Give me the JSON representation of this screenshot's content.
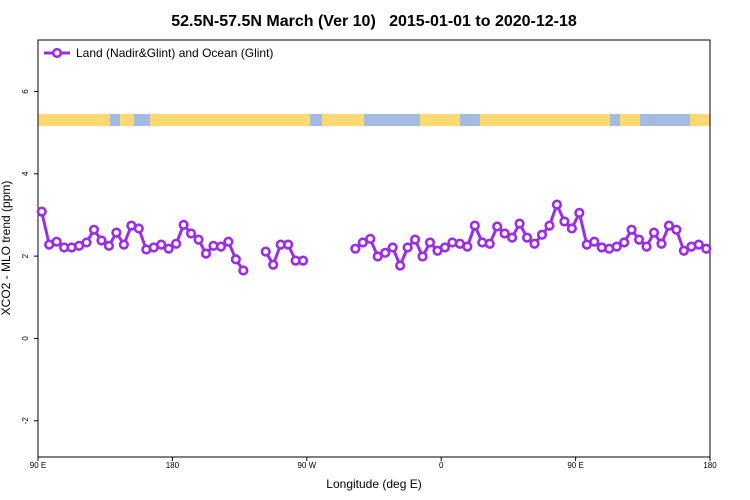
{
  "chart_data": {
    "type": "line",
    "title": "52.5N-57.5N March (Ver 10)   2015-01-01 to 2020-12-18",
    "x_label": "Longitude (deg E)",
    "y_label": "XCO2 - MLO trend (ppm)",
    "xlim": [
      90,
      540
    ],
    "ylim": [
      -2.88,
      7.25
    ],
    "xticks": [
      {
        "value": 90,
        "label": "90 E"
      },
      180,
      {
        "value": 270,
        "label": "90 W"
      },
      {
        "value": 360,
        "label": "0"
      },
      {
        "value": 450,
        "label": "90 E"
      },
      {
        "value": 540,
        "label": "180"
      }
    ],
    "yticks": [
      -2,
      0,
      2,
      4,
      6
    ],
    "legend": "top-left",
    "x": [
      92.5,
      97.5,
      102.5,
      107.5,
      112.5,
      117.5,
      122.5,
      127.5,
      132.5,
      137.5,
      142.5,
      147.5,
      152.5,
      157.5,
      162.5,
      167.5,
      172.5,
      177.5,
      182.5,
      187.5,
      192.5,
      197.5,
      202.5,
      207.5,
      212.5,
      217.5,
      222.5,
      227.5,
      232.5,
      237.5,
      242.5,
      247.5,
      252.5,
      257.5,
      262.5,
      267.5,
      272.5,
      277.5,
      282.5,
      287.5,
      292.5,
      297.5,
      302.5,
      307.5,
      312.5,
      317.5,
      322.5,
      327.5,
      332.5,
      337.5,
      342.5,
      347.5,
      352.5,
      357.5,
      362.5,
      367.5,
      372.5,
      377.5,
      382.5,
      387.5,
      392.5,
      397.5,
      402.5,
      407.5,
      412.5,
      417.5,
      422.5,
      427.5,
      432.5,
      437.5,
      442.5,
      447.5,
      452.5,
      457.5,
      462.5,
      467.5,
      472.5,
      477.5,
      482.5,
      487.5,
      492.5,
      497.5,
      502.5,
      507.5,
      512.5,
      517.5,
      522.5,
      527.5,
      532.5,
      537.5
    ],
    "series": [
      {
        "name": "Land (Nadir&Glint) and Ocean (Glint)",
        "color": "#9a2ee6",
        "values": [
          3.08,
          2.28,
          2.35,
          2.21,
          2.21,
          2.25,
          2.33,
          2.64,
          2.38,
          2.25,
          2.57,
          2.28,
          2.74,
          2.67,
          2.16,
          2.21,
          2.28,
          2.18,
          2.3,
          2.76,
          2.55,
          2.4,
          2.06,
          2.25,
          2.23,
          2.35,
          1.92,
          1.65,
          null,
          null,
          2.11,
          1.79,
          2.28,
          2.28,
          1.89,
          1.89,
          null,
          null,
          null,
          null,
          null,
          null,
          2.18,
          2.33,
          2.42,
          1.99,
          2.08,
          2.21,
          1.77,
          2.21,
          2.4,
          1.99,
          2.33,
          2.13,
          2.21,
          2.33,
          2.3,
          2.23,
          2.74,
          2.33,
          2.3,
          2.72,
          2.55,
          2.45,
          2.79,
          2.45,
          2.3,
          2.52,
          2.74,
          3.25,
          2.84,
          2.67,
          3.05,
          2.28,
          2.35,
          2.21,
          2.18,
          2.23,
          2.33,
          2.64,
          2.4,
          2.23,
          2.57,
          2.3,
          2.74,
          2.64,
          2.13,
          2.23,
          2.28,
          2.18
        ]
      }
    ]
  }
}
